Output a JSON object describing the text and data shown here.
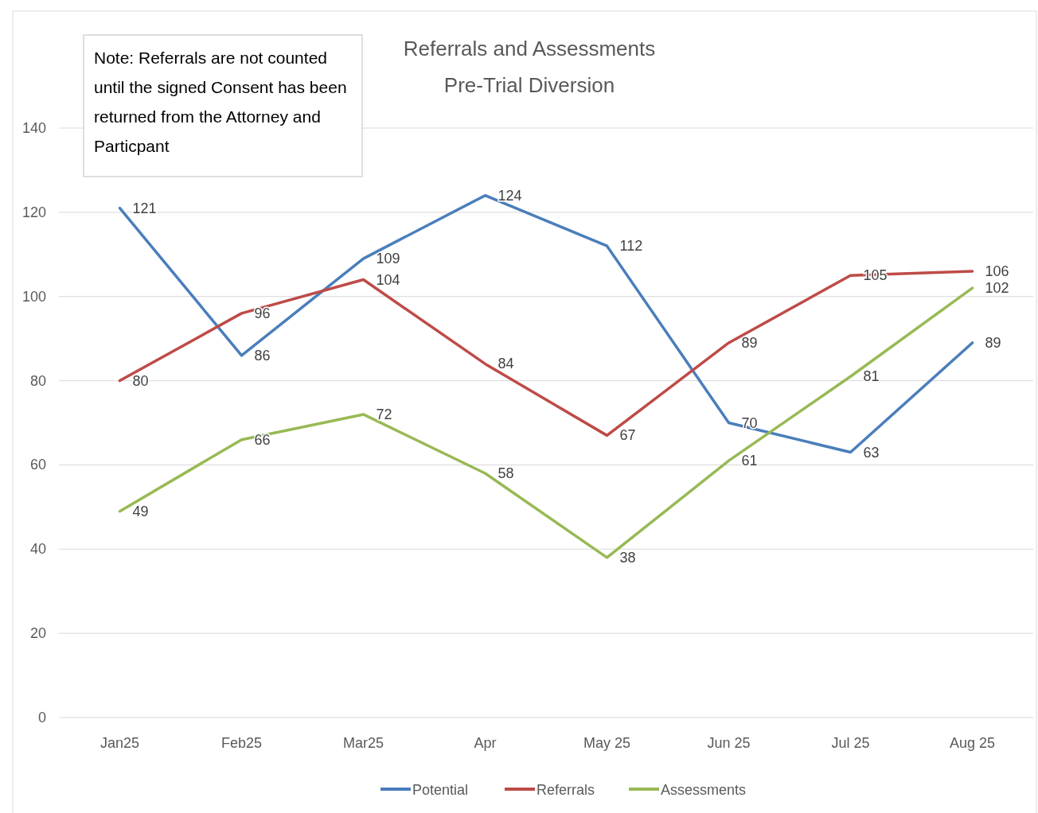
{
  "chart_data": {
    "type": "line",
    "title": "Referrals and Assessments",
    "subtitle": "Pre-Trial Diversion",
    "categories": [
      "Jan25",
      "Feb25",
      "Mar25",
      "Apr",
      "May 25",
      "Jun 25",
      "Jul 25",
      "Aug 25"
    ],
    "series": [
      {
        "name": "Potential",
        "color": "#4a7ebb",
        "values": [
          121,
          86,
          109,
          124,
          112,
          70,
          63,
          89
        ]
      },
      {
        "name": "Referrals",
        "color": "#be4b48",
        "values": [
          80,
          96,
          104,
          84,
          67,
          89,
          105,
          106
        ]
      },
      {
        "name": "Assessments",
        "color": "#98b954",
        "values": [
          49,
          66,
          72,
          58,
          38,
          61,
          81,
          102
        ]
      }
    ],
    "ylim": [
      0,
      140
    ],
    "yticks": [
      0,
      20,
      40,
      60,
      80,
      100,
      120,
      140
    ],
    "grid": "y",
    "legend": "bottom",
    "data_labels": true,
    "marker": "none",
    "line_style": "solid",
    "annotations": [
      "Note: Referrals are not counted until the signed Consent has been returned from the Attorney and Particpant"
    ]
  }
}
